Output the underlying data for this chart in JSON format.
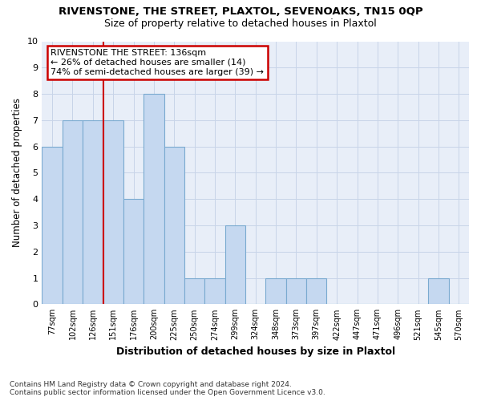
{
  "title": "RIVENSTONE, THE STREET, PLAXTOL, SEVENOAKS, TN15 0QP",
  "subtitle": "Size of property relative to detached houses in Plaxtol",
  "xlabel": "Distribution of detached houses by size in Plaxtol",
  "ylabel": "Number of detached properties",
  "categories": [
    "77sqm",
    "102sqm",
    "126sqm",
    "151sqm",
    "176sqm",
    "200sqm",
    "225sqm",
    "250sqm",
    "274sqm",
    "299sqm",
    "324sqm",
    "348sqm",
    "373sqm",
    "397sqm",
    "422sqm",
    "447sqm",
    "471sqm",
    "496sqm",
    "521sqm",
    "545sqm",
    "570sqm"
  ],
  "values": [
    6,
    7,
    7,
    7,
    4,
    8,
    6,
    1,
    1,
    3,
    0,
    1,
    1,
    1,
    0,
    0,
    0,
    0,
    0,
    1,
    0
  ],
  "bar_color": "#c5d8f0",
  "bar_edge_color": "#7aaad0",
  "property_line_index": 2,
  "annotation_text_line1": "RIVENSTONE THE STREET: 136sqm",
  "annotation_text_line2": "← 26% of detached houses are smaller (14)",
  "annotation_text_line3": "74% of semi-detached houses are larger (39) →",
  "annotation_box_color": "#cc0000",
  "ylim": [
    0,
    10
  ],
  "yticks": [
    0,
    1,
    2,
    3,
    4,
    5,
    6,
    7,
    8,
    9,
    10
  ],
  "footer_line1": "Contains HM Land Registry data © Crown copyright and database right 2024.",
  "footer_line2": "Contains public sector information licensed under the Open Government Licence v3.0.",
  "bg_color": "#ffffff",
  "plot_bg_color": "#e8eef8",
  "grid_color": "#c8d4e8"
}
